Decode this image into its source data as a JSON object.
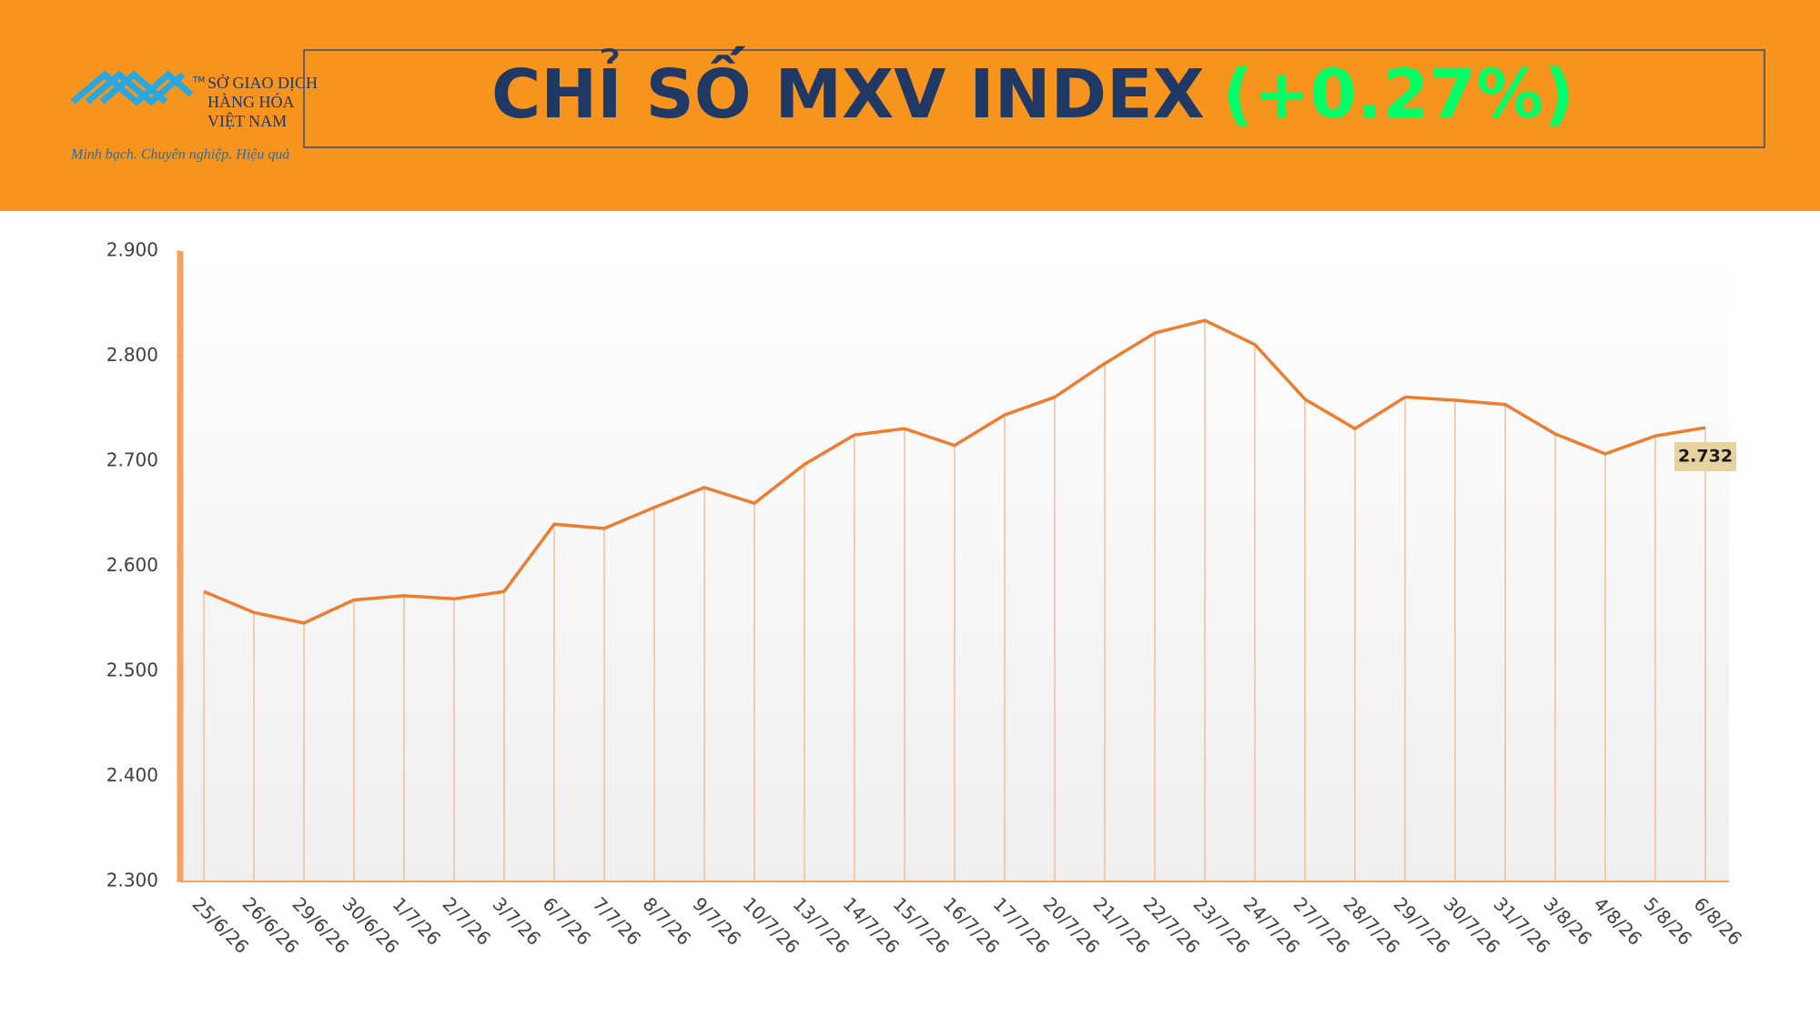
{
  "header": {
    "logo_tm": "TM",
    "logo_lines": [
      "SỞ GIAO DỊCH",
      "HÀNG HÓA",
      "VIỆT NAM"
    ],
    "tagline": "Minh bạch. Chuyên nghiệp. Hiệu quả",
    "title": "CHỈ SỐ MXV INDEX",
    "change": "(+0.27%)"
  },
  "chart_data": {
    "type": "line",
    "color": "#ed7d31",
    "categories": [
      "25/6/26",
      "26/6/26",
      "29/6/26",
      "30/6/26",
      "1/7/26",
      "2/7/26",
      "3/7/26",
      "6/7/26",
      "7/7/26",
      "8/7/26",
      "9/7/26",
      "10/7/26",
      "13/7/26",
      "14/7/26",
      "15/7/26",
      "16/7/26",
      "17/7/26",
      "20/7/26",
      "21/7/26",
      "22/7/26",
      "23/7/26",
      "24/7/26",
      "27/7/26",
      "28/7/26",
      "29/7/26",
      "30/7/26",
      "31/7/26",
      "3/8/26",
      "4/8/26",
      "5/8/26",
      "6/8/26"
    ],
    "values": [
      2576,
      2556,
      2546,
      2568,
      2572,
      2569,
      2576,
      2640,
      2636,
      2656,
      2675,
      2660,
      2697,
      2725,
      2731,
      2715,
      2744,
      2761,
      2793,
      2822,
      2834,
      2811,
      2759,
      2731,
      2761,
      2758,
      2754,
      2726,
      2707,
      2724,
      2732
    ],
    "value_labels": [
      null,
      null,
      null,
      null,
      null,
      null,
      null,
      null,
      null,
      null,
      null,
      null,
      null,
      null,
      null,
      null,
      null,
      null,
      null,
      null,
      null,
      null,
      null,
      null,
      null,
      null,
      null,
      null,
      null,
      null,
      "2.732"
    ],
    "ylim": [
      2300,
      2900
    ],
    "yticks": [
      {
        "value": 2300,
        "label": "2.300"
      },
      {
        "value": 2400,
        "label": "2.400"
      },
      {
        "value": 2500,
        "label": "2.500"
      },
      {
        "value": 2600,
        "label": "2.600"
      },
      {
        "value": 2700,
        "label": "2.700"
      },
      {
        "value": 2800,
        "label": "2.800"
      },
      {
        "value": 2900,
        "label": "2.900"
      }
    ]
  }
}
